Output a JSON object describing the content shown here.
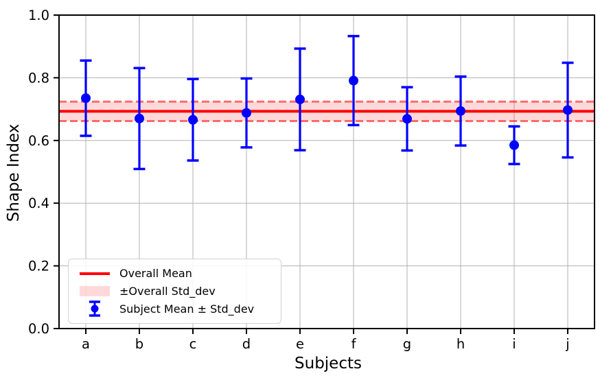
{
  "figure": {
    "background_color": "#FFFFFF"
  },
  "chart_data": {
    "type": "errorbar",
    "title": "",
    "xlabel": "Subjects",
    "ylabel": "Shape Index",
    "categories": [
      "a",
      "b",
      "c",
      "d",
      "e",
      "f",
      "g",
      "h",
      "i",
      "j"
    ],
    "series": [
      {
        "name": "Subject Mean ± Std_dev",
        "means": [
          0.735,
          0.67,
          0.666,
          0.688,
          0.731,
          0.791,
          0.669,
          0.694,
          0.585,
          0.697
        ],
        "std_devs": [
          0.12,
          0.161,
          0.13,
          0.11,
          0.162,
          0.142,
          0.101,
          0.11,
          0.06,
          0.151
        ],
        "color": "#0000FF"
      }
    ],
    "overall_mean": 0.693,
    "overall_std_dev": 0.031,
    "ylim": [
      0.0,
      1.0
    ],
    "yticks": [
      "0.0",
      "0.2",
      "0.4",
      "0.6",
      "0.8",
      "1.0"
    ],
    "ytick_values": [
      0.0,
      0.2,
      0.4,
      0.6,
      0.8,
      1.0
    ],
    "grid": true,
    "legend": {
      "position": "lower left",
      "items": [
        {
          "label": "Overall Mean",
          "type": "line",
          "color": "#FF0000"
        },
        {
          "label": "±Overall Std_dev",
          "type": "patch",
          "color": "rgba(255,0,0,0.15)"
        },
        {
          "label": "Subject Mean ± Std_dev",
          "type": "errorbar",
          "color": "#0000FF"
        }
      ]
    },
    "colors": {
      "mean_line": "#FF0000",
      "band_fill": "rgba(255,0,0,0.15)",
      "band_edge": "rgba(255,0,0,0.55)",
      "errorbar": "#0000FF",
      "grid": "#B0B0B0",
      "spine": "#000000",
      "text": "#000000"
    }
  }
}
